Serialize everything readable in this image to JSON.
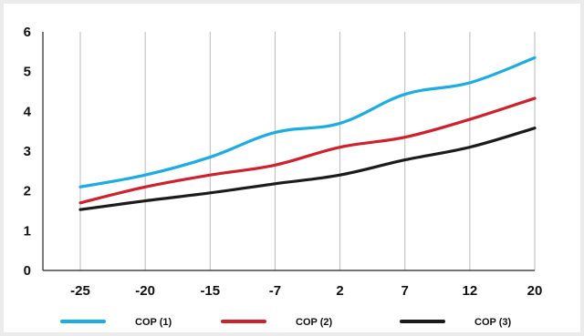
{
  "chart_data": {
    "type": "line",
    "categories": [
      "-25",
      "-20",
      "-15",
      "-7",
      "2",
      "7",
      "12",
      "20"
    ],
    "x": [
      -25,
      -20,
      -15,
      -7,
      2,
      7,
      12,
      20
    ],
    "y_ticks": [
      "0",
      "1",
      "2",
      "3",
      "4",
      "5",
      "6"
    ],
    "ylim": [
      0,
      6
    ],
    "grid": "vertical",
    "legend_placement": "bottom",
    "series": [
      {
        "name": "COP (1)",
        "color": "#1aace3",
        "values": [
          2.1,
          2.4,
          2.85,
          3.47,
          3.7,
          4.43,
          4.72,
          5.35
        ]
      },
      {
        "name": "COP (2)",
        "color": "#d0202b",
        "values": [
          1.7,
          2.1,
          2.4,
          2.65,
          3.1,
          3.35,
          3.8,
          4.33
        ]
      },
      {
        "name": "COP (3)",
        "color": "#1b1b1b",
        "values": [
          1.53,
          1.75,
          1.95,
          2.18,
          2.4,
          2.78,
          3.1,
          3.58
        ]
      }
    ]
  }
}
